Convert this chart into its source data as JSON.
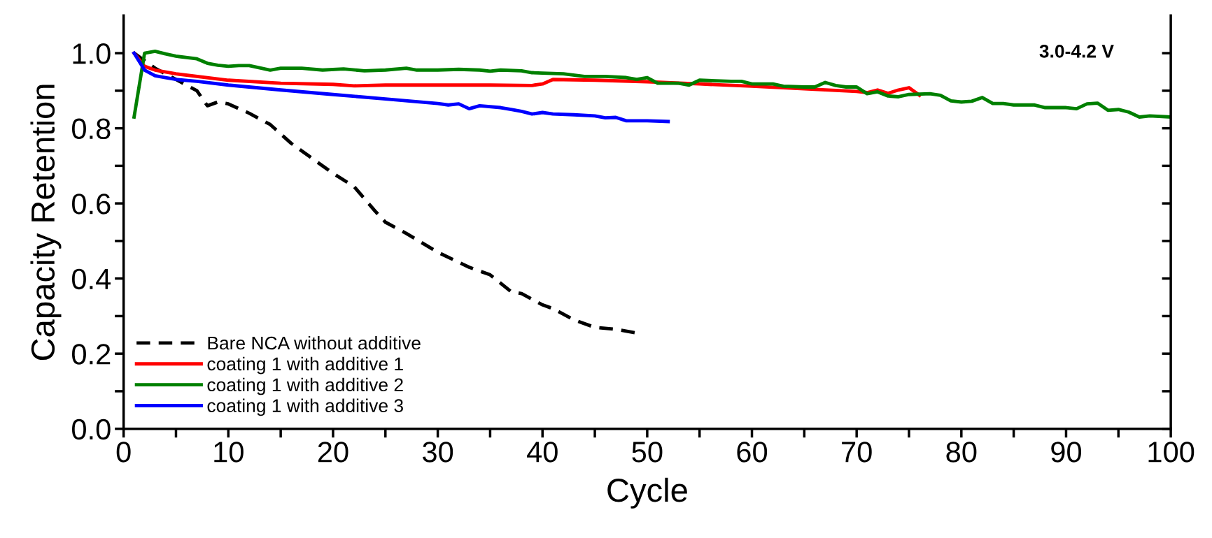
{
  "chart_data": {
    "type": "line",
    "xlabel": "Cycle",
    "ylabel": "Capacity Retention",
    "annotations": [
      "3.0-4.2 V"
    ],
    "xlim": [
      0,
      100
    ],
    "ylim": [
      0,
      1.1
    ],
    "xticks": [
      0,
      {
        "value": 5,
        "label": null
      },
      10,
      {
        "value": 15,
        "label": null
      },
      20,
      {
        "value": 25,
        "label": null
      },
      30,
      {
        "value": 35,
        "label": null
      },
      40,
      {
        "value": 45,
        "label": null
      },
      50,
      {
        "value": 55,
        "label": null
      },
      60,
      {
        "value": 65,
        "label": null
      },
      70,
      {
        "value": 75,
        "label": null
      },
      80,
      {
        "value": 85,
        "label": null
      },
      90,
      {
        "value": 95,
        "label": null
      },
      100
    ],
    "yticks": [
      {
        "value": 0,
        "label": "0.0"
      },
      {
        "value": 0.1,
        "label": null
      },
      0.2,
      {
        "value": 0.3,
        "label": null
      },
      0.4,
      {
        "value": 0.5,
        "label": null
      },
      0.6,
      {
        "value": 0.7,
        "label": null
      },
      0.8,
      {
        "value": 0.9,
        "label": null
      },
      {
        "value": 1.0,
        "label": "1.0"
      }
    ],
    "grid": false,
    "legend": "bottom left",
    "marker": "none",
    "series": [
      {
        "name": "Bare NCA without additive",
        "color": "#000000",
        "line_style": "dashed",
        "x": [
          1,
          3,
          5,
          7,
          8,
          9,
          10,
          12,
          14,
          16,
          18,
          20,
          22,
          24,
          25,
          27,
          30,
          33,
          35,
          37,
          38,
          40,
          41,
          43,
          45,
          47,
          49
        ],
        "values": [
          1.0,
          0.96,
          0.93,
          0.9,
          0.86,
          0.87,
          0.865,
          0.84,
          0.81,
          0.76,
          0.72,
          0.68,
          0.645,
          0.58,
          0.55,
          0.52,
          0.47,
          0.43,
          0.41,
          0.365,
          0.36,
          0.33,
          0.32,
          0.29,
          0.27,
          0.265,
          0.255
        ]
      },
      {
        "name": "coating 1 with additive 1",
        "color": "#ff0000",
        "x": [
          1,
          2,
          3,
          5,
          10,
          15,
          20,
          22,
          25,
          30,
          35,
          39,
          40,
          41,
          45,
          50,
          55,
          60,
          65,
          70,
          71,
          72,
          73,
          74,
          75,
          76
        ],
        "values": [
          1.0,
          0.965,
          0.955,
          0.945,
          0.928,
          0.92,
          0.917,
          0.913,
          0.915,
          0.915,
          0.915,
          0.914,
          0.918,
          0.93,
          0.928,
          0.924,
          0.918,
          0.912,
          0.905,
          0.898,
          0.895,
          0.902,
          0.893,
          0.902,
          0.908,
          0.888
        ]
      },
      {
        "name": "coating 1 with additive 2",
        "color": "#008000",
        "x": [
          1,
          2,
          3,
          4,
          5,
          7,
          8,
          9,
          10,
          11,
          12,
          14,
          15,
          17,
          19,
          21,
          23,
          25,
          27,
          28,
          30,
          32,
          34,
          35,
          36,
          38,
          39,
          40,
          42,
          44,
          46,
          48,
          49,
          50,
          51,
          53,
          54,
          55,
          58,
          59,
          60,
          62,
          63,
          65,
          66,
          67,
          68,
          69,
          70,
          71,
          72,
          73,
          74,
          75,
          77,
          78,
          79,
          80,
          81,
          82,
          83,
          84,
          85,
          87,
          88,
          90,
          91,
          92,
          93,
          94,
          95,
          96,
          97,
          98,
          100
        ],
        "values": [
          0.83,
          1.0,
          1.005,
          0.998,
          0.992,
          0.985,
          0.973,
          0.968,
          0.965,
          0.967,
          0.967,
          0.955,
          0.96,
          0.96,
          0.955,
          0.958,
          0.953,
          0.955,
          0.96,
          0.955,
          0.955,
          0.957,
          0.955,
          0.952,
          0.955,
          0.953,
          0.948,
          0.947,
          0.945,
          0.938,
          0.938,
          0.935,
          0.93,
          0.935,
          0.92,
          0.92,
          0.915,
          0.928,
          0.925,
          0.925,
          0.918,
          0.918,
          0.912,
          0.91,
          0.91,
          0.922,
          0.914,
          0.91,
          0.91,
          0.892,
          0.897,
          0.886,
          0.884,
          0.89,
          0.892,
          0.888,
          0.873,
          0.87,
          0.872,
          0.882,
          0.866,
          0.866,
          0.862,
          0.862,
          0.855,
          0.855,
          0.852,
          0.865,
          0.867,
          0.848,
          0.85,
          0.843,
          0.83,
          0.833,
          0.83
        ]
      },
      {
        "name": "coating 1 with additive 3",
        "color": "#0000ff",
        "x": [
          1,
          2,
          3,
          4,
          5,
          7,
          10,
          15,
          20,
          25,
          30,
          31,
          32,
          33,
          34,
          36,
          37,
          38,
          39,
          40,
          41,
          43,
          45,
          46,
          47,
          48,
          50,
          52
        ],
        "values": [
          1.0,
          0.955,
          0.94,
          0.935,
          0.93,
          0.925,
          0.915,
          0.902,
          0.89,
          0.878,
          0.866,
          0.862,
          0.865,
          0.852,
          0.86,
          0.855,
          0.85,
          0.845,
          0.838,
          0.842,
          0.838,
          0.836,
          0.833,
          0.828,
          0.829,
          0.82,
          0.82,
          0.818
        ]
      }
    ]
  }
}
